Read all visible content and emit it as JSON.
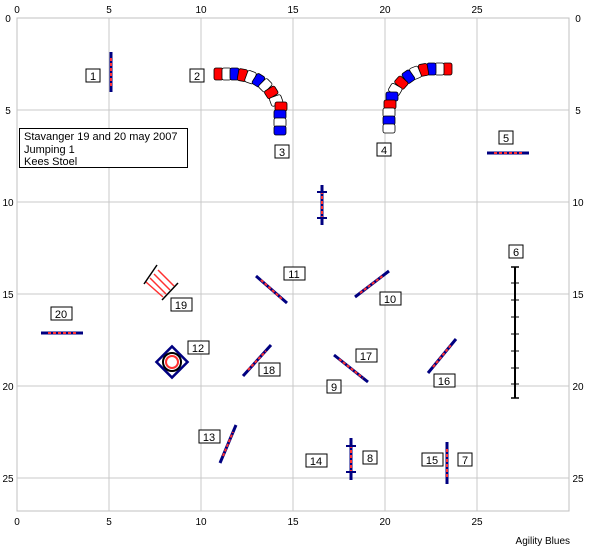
{
  "course": {
    "x_axis_ticks": [
      "0",
      "5",
      "10",
      "15",
      "20",
      "25"
    ],
    "y_axis_ticks": [
      "0",
      "5",
      "10",
      "15",
      "20",
      "25"
    ],
    "info_lines": [
      "Stavanger 19 and 20 may 2007",
      "Jumping  1",
      "Kees Stoel"
    ],
    "credit": "Agility Blues",
    "obstacle_numbers": [
      "1",
      "2",
      "3",
      "4",
      "5",
      "6",
      "7",
      "8",
      "9",
      "10",
      "11",
      "12",
      "13",
      "14",
      "15",
      "16",
      "17",
      "18",
      "19",
      "20"
    ],
    "colors": {
      "grid": "#c0c0c0",
      "bar": "#ff3030",
      "wing": "#000080",
      "tunnel_red": "#ff0000",
      "tunnel_blue": "#0000ff",
      "tunnel_white": "#ffffff",
      "text": "#000000"
    }
  }
}
